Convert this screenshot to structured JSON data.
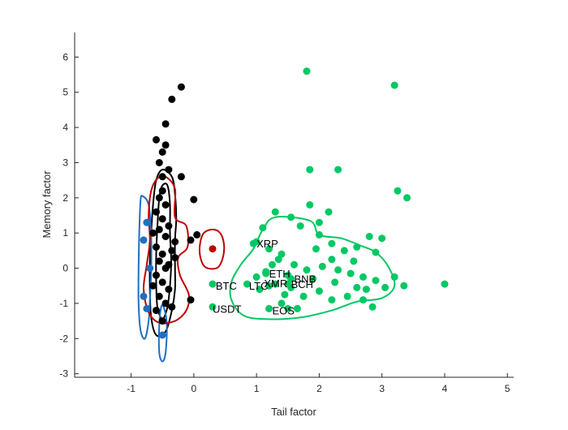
{
  "chart_data": {
    "type": "scatter",
    "title": "",
    "xlabel": "Tail factor",
    "ylabel": "Memory factor",
    "xlim": [
      -1.9,
      5.1
    ],
    "ylim": [
      -3.1,
      6.7
    ],
    "xticks": [
      -1,
      0,
      1,
      2,
      3,
      4,
      5
    ],
    "yticks": [
      -3,
      -2,
      -1,
      0,
      1,
      2,
      3,
      4,
      5,
      6
    ],
    "grid": false,
    "legend": "none",
    "colors": {
      "black": "#000000",
      "blue": "#1f6fc2",
      "red": "#c00000",
      "green": "#00c864",
      "axis": "#262626"
    },
    "series": [
      {
        "color_key": "black",
        "points": [
          [
            -0.2,
            5.15
          ],
          [
            -0.35,
            4.8
          ],
          [
            -0.45,
            4.1
          ],
          [
            -0.6,
            3.65
          ],
          [
            -0.45,
            3.5
          ],
          [
            -0.5,
            3.3
          ],
          [
            -0.55,
            3.0
          ],
          [
            -0.4,
            2.8
          ],
          [
            -0.5,
            2.6
          ],
          [
            -0.2,
            2.6
          ],
          [
            0.0,
            1.95
          ],
          [
            0.05,
            0.95
          ],
          [
            -0.05,
            0.8
          ],
          [
            -0.3,
            0.75
          ],
          [
            -0.35,
            0.5
          ],
          [
            -0.3,
            0.3
          ],
          [
            -0.4,
            0.1
          ],
          [
            -0.5,
            2.2
          ],
          [
            -0.55,
            2.0
          ],
          [
            -0.45,
            1.8
          ],
          [
            -0.6,
            1.6
          ],
          [
            -0.5,
            1.4
          ],
          [
            -0.4,
            1.2
          ],
          [
            -0.55,
            1.1
          ],
          [
            -0.45,
            0.9
          ],
          [
            -0.6,
            0.6
          ],
          [
            -0.5,
            0.4
          ],
          [
            -0.55,
            0.2
          ],
          [
            -0.45,
            0.0
          ],
          [
            -0.6,
            -0.2
          ],
          [
            -0.5,
            -0.4
          ],
          [
            -0.4,
            -0.6
          ],
          [
            -0.55,
            -0.8
          ],
          [
            -0.45,
            -1.0
          ],
          [
            -0.6,
            -1.2
          ],
          [
            -0.5,
            -1.5
          ],
          [
            -0.05,
            -0.9
          ],
          [
            -0.35,
            -1.1
          ],
          [
            -0.65,
            1.0
          ],
          [
            -0.65,
            -0.5
          ]
        ]
      },
      {
        "color_key": "blue",
        "points": [
          [
            -0.5,
            -1.9
          ],
          [
            -0.75,
            -1.15
          ],
          [
            -0.8,
            -0.8
          ],
          [
            -0.8,
            0.8
          ],
          [
            -0.75,
            1.3
          ],
          [
            -0.7,
            0.0
          ]
        ]
      },
      {
        "color_key": "red",
        "points": [
          [
            0.3,
            0.55
          ]
        ]
      },
      {
        "color_key": "green",
        "points": [
          [
            1.8,
            5.6
          ],
          [
            3.2,
            5.2
          ],
          [
            1.85,
            2.8
          ],
          [
            2.3,
            2.8
          ],
          [
            3.25,
            2.2
          ],
          [
            3.4,
            2.0
          ],
          [
            1.85,
            1.8
          ],
          [
            1.3,
            1.6
          ],
          [
            1.1,
            1.15
          ],
          [
            1.55,
            1.45
          ],
          [
            1.7,
            1.2
          ],
          [
            2.15,
            1.6
          ],
          [
            2.0,
            1.3
          ],
          [
            1.0,
            0.75
          ],
          [
            1.95,
            0.55
          ],
          [
            2.2,
            0.7
          ],
          [
            2.4,
            0.5
          ],
          [
            2.6,
            0.6
          ],
          [
            2.8,
            0.9
          ],
          [
            3.0,
            0.85
          ],
          [
            2.9,
            0.45
          ],
          [
            1.4,
            0.4
          ],
          [
            1.25,
            0.1
          ],
          [
            1.6,
            0.1
          ],
          [
            1.8,
            -0.05
          ],
          [
            2.05,
            0.05
          ],
          [
            2.3,
            -0.05
          ],
          [
            2.5,
            -0.15
          ],
          [
            2.7,
            -0.25
          ],
          [
            2.9,
            -0.35
          ],
          [
            3.2,
            -0.25
          ],
          [
            3.35,
            -0.5
          ],
          [
            4.0,
            -0.45
          ],
          [
            1.0,
            -0.25
          ],
          [
            1.3,
            -0.45
          ],
          [
            1.55,
            -0.55
          ],
          [
            1.75,
            -0.8
          ],
          [
            2.0,
            -0.65
          ],
          [
            2.2,
            -0.9
          ],
          [
            2.45,
            -0.8
          ],
          [
            2.7,
            -0.9
          ],
          [
            2.85,
            -1.1
          ],
          [
            1.4,
            -1.0
          ],
          [
            1.2,
            -1.15
          ],
          [
            1.65,
            -1.15
          ],
          [
            2.25,
            -0.4
          ],
          [
            1.9,
            -0.3
          ],
          [
            1.45,
            -0.75
          ],
          [
            1.05,
            -0.6
          ],
          [
            2.55,
            0.2
          ],
          [
            2.75,
            -0.6
          ],
          [
            3.05,
            -0.55
          ],
          [
            1.2,
            0.55
          ],
          [
            2.0,
            0.95
          ],
          [
            1.15,
            -0.1
          ],
          [
            1.5,
            -0.2
          ],
          [
            2.6,
            -0.55
          ],
          [
            2.2,
            0.25
          ],
          [
            1.35,
            0.25
          ]
        ]
      },
      {
        "color_key": "green",
        "points": [
          [
            0.3,
            -0.45
          ],
          [
            0.3,
            -1.1
          ],
          [
            0.85,
            -0.45
          ],
          [
            0.95,
            0.7
          ],
          [
            1.15,
            -0.15
          ],
          [
            1.2,
            -0.5
          ],
          [
            1.5,
            -0.45
          ],
          [
            1.55,
            -0.3
          ],
          [
            1.5,
            -1.15
          ]
        ]
      }
    ],
    "annotations": [
      {
        "text": "XRP",
        "x": 1.0,
        "y": 0.7
      },
      {
        "text": "ETH",
        "x": 1.2,
        "y": -0.15
      },
      {
        "text": "BTC",
        "x": 0.35,
        "y": -0.5
      },
      {
        "text": "LTC",
        "x": 0.88,
        "y": -0.5
      },
      {
        "text": "XMR",
        "x": 1.12,
        "y": -0.43
      },
      {
        "text": "BCH",
        "x": 1.55,
        "y": -0.45
      },
      {
        "text": "BNB",
        "x": 1.6,
        "y": -0.3
      },
      {
        "text": "USDT",
        "x": 0.3,
        "y": -1.15
      },
      {
        "text": "EOS",
        "x": 1.25,
        "y": -1.2
      }
    ],
    "contours": [
      {
        "color_key": "black",
        "points": [
          [
            -0.5,
            2.8
          ],
          [
            -0.35,
            2.6
          ],
          [
            -0.3,
            2.1
          ],
          [
            -0.28,
            1.4
          ],
          [
            -0.3,
            0.8
          ],
          [
            -0.3,
            0.0
          ],
          [
            -0.3,
            -0.6
          ],
          [
            -0.35,
            -1.2
          ],
          [
            -0.45,
            -1.8
          ],
          [
            -0.6,
            -1.9
          ],
          [
            -0.68,
            -1.4
          ],
          [
            -0.7,
            -0.6
          ],
          [
            -0.7,
            0.2
          ],
          [
            -0.68,
            1.0
          ],
          [
            -0.65,
            1.8
          ],
          [
            -0.6,
            2.5
          ]
        ]
      },
      {
        "color_key": "black",
        "points": [
          [
            -0.42,
            2.35
          ],
          [
            -0.38,
            1.8
          ],
          [
            -0.38,
            1.0
          ],
          [
            -0.36,
            0.2
          ],
          [
            -0.38,
            -0.5
          ],
          [
            -0.42,
            -1.1
          ],
          [
            -0.5,
            -1.45
          ],
          [
            -0.58,
            -1.1
          ],
          [
            -0.6,
            -0.4
          ],
          [
            -0.6,
            0.4
          ],
          [
            -0.58,
            1.2
          ],
          [
            -0.55,
            2.0
          ],
          [
            -0.5,
            2.35
          ]
        ]
      },
      {
        "color_key": "blue",
        "points": [
          [
            -0.82,
            2.05
          ],
          [
            -0.72,
            1.8
          ],
          [
            -0.68,
            0.9
          ],
          [
            -0.68,
            -0.1
          ],
          [
            -0.7,
            -0.9
          ],
          [
            -0.72,
            -1.5
          ],
          [
            -0.78,
            -2.0
          ],
          [
            -0.85,
            -1.75
          ],
          [
            -0.88,
            -1.0
          ],
          [
            -0.88,
            0.0
          ],
          [
            -0.87,
            1.0
          ],
          [
            -0.85,
            1.9
          ]
        ]
      },
      {
        "color_key": "blue",
        "points": [
          [
            -0.48,
            -1.1
          ],
          [
            -0.43,
            -1.6
          ],
          [
            -0.45,
            -2.4
          ],
          [
            -0.5,
            -2.65
          ],
          [
            -0.55,
            -2.4
          ],
          [
            -0.55,
            -1.6
          ],
          [
            -0.52,
            -1.1
          ]
        ]
      },
      {
        "color_key": "red",
        "points": [
          [
            -0.45,
            2.6
          ],
          [
            -0.3,
            2.25
          ],
          [
            -0.3,
            1.45
          ],
          [
            -0.12,
            1.2
          ],
          [
            -0.1,
            0.6
          ],
          [
            -0.25,
            0.3
          ],
          [
            -0.22,
            -0.2
          ],
          [
            -0.08,
            -0.75
          ],
          [
            -0.12,
            -1.2
          ],
          [
            -0.3,
            -1.5
          ],
          [
            -0.55,
            -1.55
          ],
          [
            -0.72,
            -1.25
          ],
          [
            -0.8,
            -0.6
          ],
          [
            -0.75,
            0.1
          ],
          [
            -0.7,
            0.8
          ],
          [
            -0.72,
            1.5
          ],
          [
            -0.68,
            2.2
          ],
          [
            -0.58,
            2.55
          ]
        ]
      },
      {
        "color_key": "red",
        "points": [
          [
            0.3,
            1.1
          ],
          [
            0.42,
            1.0
          ],
          [
            0.48,
            0.7
          ],
          [
            0.47,
            0.35
          ],
          [
            0.4,
            0.05
          ],
          [
            0.3,
            -0.02
          ],
          [
            0.17,
            0.05
          ],
          [
            0.1,
            0.35
          ],
          [
            0.1,
            0.7
          ],
          [
            0.16,
            1.0
          ]
        ]
      },
      {
        "color_key": "green",
        "points": [
          [
            1.3,
            1.45
          ],
          [
            1.85,
            1.35
          ],
          [
            2.0,
            0.95
          ],
          [
            2.35,
            0.85
          ],
          [
            2.65,
            0.65
          ],
          [
            2.9,
            0.45
          ],
          [
            3.1,
            0.05
          ],
          [
            3.2,
            -0.5
          ],
          [
            3.0,
            -0.85
          ],
          [
            2.6,
            -0.95
          ],
          [
            2.2,
            -1.2
          ],
          [
            1.7,
            -1.4
          ],
          [
            1.2,
            -1.45
          ],
          [
            0.8,
            -1.35
          ],
          [
            0.6,
            -0.9
          ],
          [
            0.6,
            -0.4
          ],
          [
            0.75,
            0.1
          ],
          [
            0.95,
            0.55
          ],
          [
            1.1,
            1.1
          ]
        ]
      }
    ]
  }
}
